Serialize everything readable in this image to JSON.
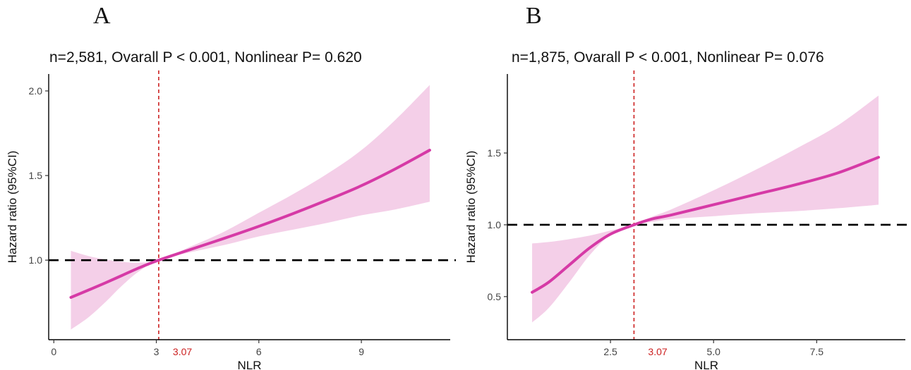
{
  "chart_data": [
    {
      "type": "line",
      "panel_label": "A",
      "title": "n=2,581, Ovarall P < 0.001, Nonlinear P= 0.620",
      "xlabel": "NLR",
      "ylabel": "Hazard ratio (95%CI)",
      "xlim": [
        -0.15,
        11.6
      ],
      "ylim": [
        0.53,
        2.1
      ],
      "x_ticks": [
        0,
        3,
        6,
        9
      ],
      "x_tick_labels": [
        "0",
        "3",
        "6",
        "9"
      ],
      "y_ticks": [
        1.0,
        1.5,
        2.0
      ],
      "y_tick_labels": [
        "1.0",
        "1.5",
        "2.0"
      ],
      "cutoff": 3.07,
      "cutoff_label": "3.07",
      "reference_hr": 1.0,
      "grid": false,
      "colors": {
        "line": "#d63aa6",
        "band": "#f4cfe8",
        "cutoff": "#cc1f1f",
        "reference": "#000000"
      },
      "series": [
        {
          "x": [
            0.5,
            1.0,
            1.5,
            2.0,
            2.5,
            3.07,
            4.0,
            5.0,
            6.0,
            7.0,
            8.0,
            9.0,
            10.0,
            11.0
          ],
          "hr": [
            0.78,
            0.822,
            0.865,
            0.91,
            0.955,
            1.0,
            1.063,
            1.13,
            1.2,
            1.275,
            1.355,
            1.44,
            1.54,
            1.65
          ],
          "lower": [
            0.59,
            0.66,
            0.75,
            0.85,
            0.935,
            1.0,
            1.047,
            1.09,
            1.14,
            1.18,
            1.22,
            1.265,
            1.3,
            1.345
          ],
          "upper": [
            1.055,
            1.025,
            1.005,
            0.99,
            0.985,
            1.0,
            1.08,
            1.17,
            1.28,
            1.39,
            1.51,
            1.65,
            1.83,
            2.035
          ]
        }
      ]
    },
    {
      "type": "line",
      "panel_label": "B",
      "title": "n=1,875, Ovarall P < 0.001, Nonlinear P= 0.076",
      "xlabel": "NLR",
      "ylabel": "Hazard ratio (95%CI)",
      "xlim": [
        0.0,
        9.65
      ],
      "ylim": [
        0.2,
        2.05
      ],
      "x_ticks": [
        2.5,
        5.0,
        7.5
      ],
      "x_tick_labels": [
        "2.5",
        "5.0",
        "7.5"
      ],
      "y_ticks": [
        0.5,
        1.0,
        1.5
      ],
      "y_tick_labels": [
        "0.5",
        "1.0",
        "1.5"
      ],
      "cutoff": 3.07,
      "cutoff_label": "3.07",
      "reference_hr": 1.0,
      "grid": false,
      "colors": {
        "line": "#d63aa6",
        "band": "#f4cfe8",
        "cutoff": "#cc1f1f",
        "reference": "#000000"
      },
      "series": [
        {
          "x": [
            0.6,
            1.0,
            1.5,
            2.0,
            2.5,
            3.07,
            3.5,
            4.0,
            5.0,
            6.0,
            7.0,
            8.0,
            9.0
          ],
          "hr": [
            0.53,
            0.6,
            0.72,
            0.84,
            0.935,
            1.0,
            1.04,
            1.07,
            1.14,
            1.21,
            1.28,
            1.36,
            1.47
          ],
          "lower": [
            0.32,
            0.42,
            0.6,
            0.79,
            0.93,
            1.0,
            1.02,
            1.04,
            1.06,
            1.08,
            1.095,
            1.115,
            1.14
          ],
          "upper": [
            0.87,
            0.88,
            0.9,
            0.925,
            0.96,
            1.0,
            1.055,
            1.11,
            1.24,
            1.38,
            1.53,
            1.69,
            1.9
          ]
        }
      ]
    }
  ]
}
